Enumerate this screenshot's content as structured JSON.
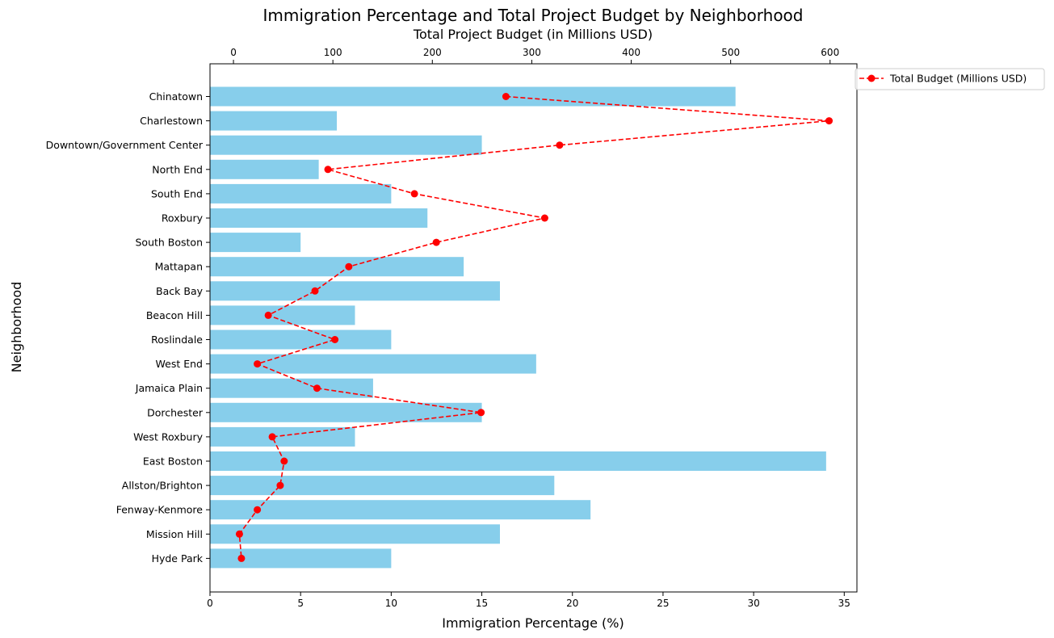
{
  "chart_data": {
    "type": "bar",
    "title": "Immigration Percentage and Total Project Budget by Neighborhood",
    "xlabel": "Immigration Percentage (%)",
    "ylabel": "Neighborhood",
    "x2label": "Total Project Budget (in Millions USD)",
    "xlim": [
      0,
      35.7
    ],
    "x2lim": [
      -23.6,
      627
    ],
    "xticks": [
      0,
      5,
      10,
      15,
      20,
      25,
      30,
      35
    ],
    "x2ticks": [
      0,
      100,
      200,
      300,
      400,
      500,
      600
    ],
    "grid": false,
    "legend_position": "top-right",
    "categories": [
      "Chinatown",
      "Charlestown",
      "Downtown/Government Center",
      "North End",
      "South End",
      "Roxbury",
      "South Boston",
      "Mattapan",
      "Back Bay",
      "Beacon Hill",
      "Roslindale",
      "West End",
      "Jamaica Plain",
      "Dorchester",
      "West Roxbury",
      "East Boston",
      "Allston/Brighton",
      "Fenway-Kenmore",
      "Mission Hill",
      "Hyde Park"
    ],
    "series": [
      {
        "kind": "bar",
        "axis": "bottom",
        "values": [
          29,
          7,
          15,
          6,
          10,
          12,
          5,
          14,
          16,
          8,
          10,
          18,
          9,
          15,
          8,
          34,
          19,
          21,
          16,
          10
        ],
        "color": "#87ceeb"
      },
      {
        "kind": "line",
        "axis": "top",
        "name": "Total Budget (Millions USD)",
        "values": [
          274,
          599,
          328,
          95,
          182,
          313,
          204,
          116,
          82,
          35,
          102,
          24,
          84,
          249,
          39,
          51,
          47,
          24,
          6,
          8
        ],
        "color": "#ff0000",
        "linestyle": "dashed",
        "marker": "circle"
      }
    ]
  }
}
